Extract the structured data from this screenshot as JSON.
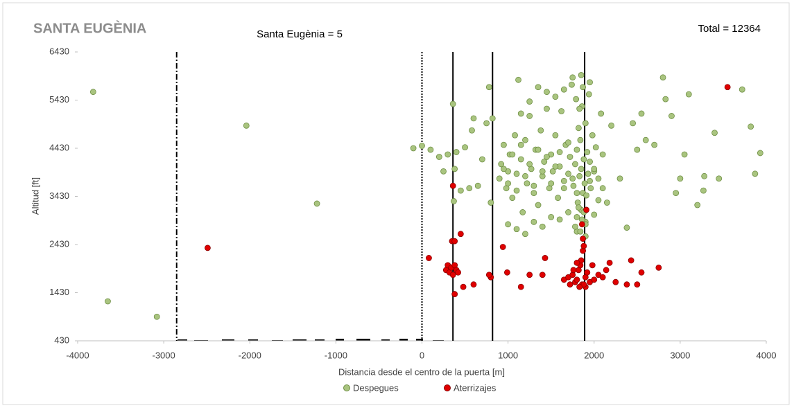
{
  "chart_data": {
    "type": "scatter",
    "title": "SANTA EUGÈNIA",
    "subtitle": "Santa Eugènia = 5",
    "annotation": "Total = 12364",
    "x_label": "Distancia desde el centro de la puerta [m]",
    "y_label": "Altitud [ft]",
    "xlim": [
      -4000,
      4000
    ],
    "xticks": [
      -4000,
      -3000,
      -2000,
      -1000,
      0,
      1000,
      2000,
      3000,
      4000
    ],
    "ylim": [
      430,
      6430
    ],
    "yticks": [
      430,
      1430,
      2430,
      3430,
      4430,
      5430,
      6430
    ],
    "grid": false,
    "legend": "bottom",
    "vlines": [
      {
        "x": -2850,
        "style": "dashdot"
      },
      {
        "x": 0,
        "style": "dotted"
      },
      {
        "x": 360,
        "style": "solid"
      },
      {
        "x": 820,
        "style": "solid"
      },
      {
        "x": 1890,
        "style": "solid"
      }
    ],
    "series": [
      {
        "name": "Despegues",
        "color": "#a9c47f",
        "stroke": "#6f8f45",
        "x": [
          -3820,
          -3650,
          -3080,
          -2040,
          -1220,
          -100,
          0,
          100,
          200,
          250,
          300,
          360,
          380,
          370,
          400,
          450,
          500,
          550,
          580,
          600,
          650,
          700,
          750,
          780,
          800,
          820,
          900,
          920,
          950,
          980,
          1000,
          1020,
          1050,
          1080,
          1100,
          1120,
          1150,
          1170,
          1200,
          1220,
          1250,
          1270,
          1300,
          1320,
          1350,
          1380,
          1400,
          1420,
          1450,
          1480,
          1500,
          1520,
          1550,
          1580,
          1600,
          1620,
          1650,
          1670,
          1700,
          1720,
          1740,
          1760,
          1780,
          1800,
          1810,
          1820,
          1830,
          1840,
          1850,
          1860,
          1870,
          1880,
          1890,
          1900,
          1910,
          1920,
          1930,
          1940,
          1950,
          1960,
          1980,
          2000,
          2020,
          2050,
          2080,
          2100,
          950,
          1000,
          1050,
          1100,
          1150,
          1200,
          1250,
          1300,
          1350,
          1400,
          1450,
          1500,
          1550,
          1600,
          1650,
          1700,
          1750,
          1800,
          1850,
          1900,
          1950,
          2000,
          2050,
          2100,
          1000,
          1100,
          1200,
          1300,
          1400,
          1500,
          1600,
          1700,
          1800,
          1900,
          2000,
          1150,
          1250,
          1350,
          1450,
          1550,
          1650,
          1750,
          1850,
          1950,
          1780,
          1800,
          1820,
          1840,
          1860,
          1880,
          1900,
          1790,
          1830,
          1870,
          2150,
          2200,
          2300,
          2380,
          2450,
          2500,
          2550,
          2600,
          2700,
          2800,
          2830,
          2900,
          2950,
          3000,
          3050,
          3100,
          3200,
          3270,
          3280,
          3400,
          3450,
          3720,
          3820,
          3870,
          3930
        ],
        "values": [
          5600,
          1250,
          930,
          4900,
          3280,
          4430,
          4480,
          4400,
          4250,
          3950,
          4300,
          5350,
          4000,
          3330,
          4350,
          3550,
          4450,
          3600,
          4800,
          5050,
          3650,
          4200,
          4950,
          5700,
          3300,
          5050,
          3800,
          4100,
          4500,
          3600,
          3950,
          4300,
          3400,
          4700,
          3900,
          5850,
          4200,
          3100,
          4600,
          3700,
          5100,
          4000,
          3500,
          4400,
          3250,
          4800,
          3850,
          4150,
          5600,
          3600,
          4300,
          3950,
          4700,
          3400,
          4050,
          5200,
          3750,
          4500,
          3900,
          4250,
          5750,
          3650,
          4100,
          4400,
          3300,
          4850,
          3850,
          4600,
          4000,
          5300,
          3500,
          4200,
          3700,
          4950,
          3450,
          4350,
          3900,
          5550,
          4150,
          3600,
          4700,
          3950,
          4450,
          3800,
          5150,
          4300,
          4000,
          3700,
          4300,
          3550,
          4500,
          3850,
          4100,
          3650,
          4400,
          3950,
          4250,
          3700,
          4050,
          4350,
          3600,
          4550,
          3800,
          3500,
          3150,
          2900,
          3750,
          4000,
          3350,
          3600,
          2850,
          2750,
          2650,
          2900,
          2800,
          3000,
          2950,
          3100,
          2700,
          2600,
          3050,
          5150,
          5400,
          5700,
          5250,
          5500,
          5650,
          5900,
          5950,
          5800,
          2800,
          3000,
          3200,
          2700,
          2950,
          3100,
          2850,
          5450,
          5250,
          5700,
          3300,
          4900,
          3800,
          2780,
          4950,
          4400,
          5150,
          4600,
          4500,
          5900,
          5450,
          5100,
          3500,
          3800,
          4300,
          5550,
          3250,
          3550,
          3850,
          4750,
          3800,
          5650,
          4880,
          3900,
          4330
        ]
      },
      {
        "name": "Aterrizajes",
        "color": "#e00000",
        "stroke": "#8a0000",
        "x": [
          -2490,
          3550,
          80,
          280,
          300,
          320,
          340,
          360,
          380,
          400,
          420,
          350,
          380,
          360,
          380,
          450,
          480,
          600,
          800,
          780,
          940,
          990,
          1150,
          1250,
          1400,
          1430,
          1650,
          1700,
          1720,
          1750,
          1780,
          1800,
          1820,
          1840,
          1850,
          1860,
          1870,
          1880,
          1870,
          1860,
          1910,
          1900,
          1920,
          1950,
          1980,
          2000,
          2050,
          2100,
          1760,
          1800,
          1900,
          2140,
          2180,
          2250,
          2380,
          2430,
          2500,
          2550,
          2750,
          1880,
          1830
        ],
        "values": [
          2360,
          5700,
          2150,
          1900,
          2000,
          1850,
          1950,
          1800,
          2000,
          1900,
          1850,
          2500,
          2500,
          3650,
          1400,
          2650,
          1550,
          1600,
          1750,
          1800,
          2380,
          1850,
          1550,
          1800,
          1800,
          2150,
          1700,
          1750,
          1600,
          1800,
          1650,
          1700,
          1900,
          2000,
          2100,
          1600,
          2300,
          2400,
          2550,
          2850,
          3150,
          1750,
          1850,
          1650,
          2000,
          1700,
          1800,
          1750,
          1900,
          2050,
          1550,
          1900,
          2050,
          1650,
          1600,
          2100,
          1600,
          1850,
          1950,
          1600,
          1550
        ]
      }
    ]
  }
}
